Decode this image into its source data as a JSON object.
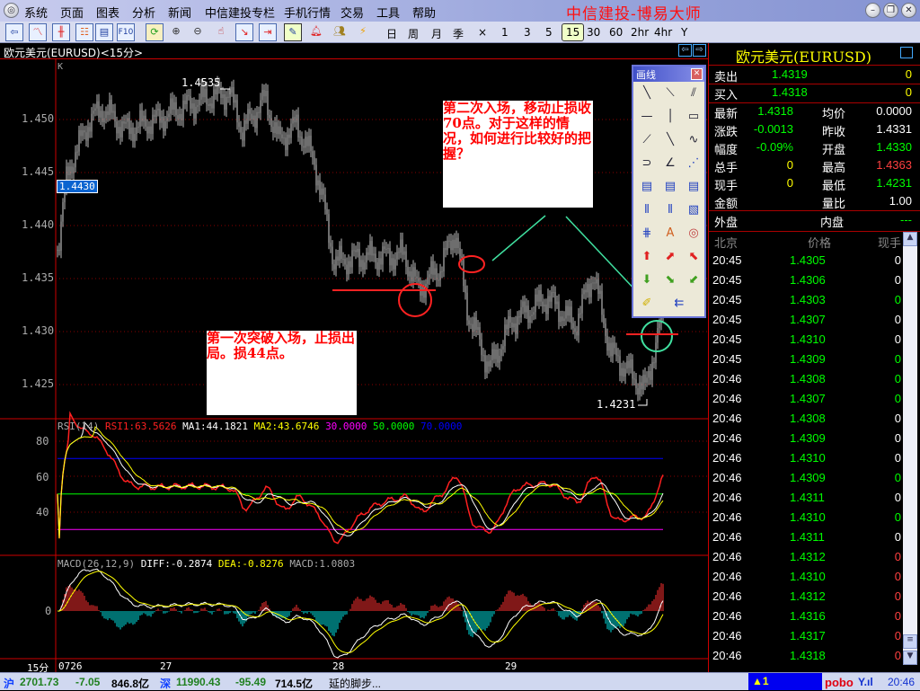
{
  "app": {
    "title": "中信建投-博易大师",
    "menu": [
      "系统",
      "页面",
      "图表",
      "分析",
      "新闻",
      "中信建投专栏",
      "手机行情",
      "交易",
      "工具",
      "帮助"
    ]
  },
  "toolbar": {
    "icons": [
      "back-icon",
      "line-chart-icon",
      "candle-chart-icon",
      "list-icon",
      "report-icon",
      "f10-icon",
      "refresh-icon",
      "zoom-in-icon",
      "zoom-out-icon",
      "select-icon",
      "export-icon",
      "import-icon",
      "draw-icon",
      "alarm-icon",
      "users-icon",
      "flash-icon"
    ],
    "f10_label": "F10",
    "periods": [
      "日",
      "周",
      "月",
      "季",
      "×",
      "1",
      "3",
      "5",
      "15",
      "30",
      "60",
      "2hr",
      "4hr",
      "Y"
    ],
    "selected_period": "15"
  },
  "chart": {
    "header": "欧元美元(EURUSD)<15分>",
    "k_label": "K",
    "y_ticks": [
      "1.450",
      "1.445",
      "1.440",
      "1.435",
      "1.430",
      "1.425"
    ],
    "high_label": "1.4535",
    "low_label": "1.4231",
    "cursor_price": "1.4430",
    "note1": "第二次入场，移动止损收70点。对于这样的情况，如何进行比较好的把握？",
    "note2": "第一次突破入场，止损出局。损44点。",
    "rsi": {
      "name": "RSI(14)",
      "rsi1": "RSI1:63.5626",
      "ma1": "MA1:44.1821",
      "ma2": "MA2:43.6746",
      "l30": "30.0000",
      "l50": "50.0000",
      "l70": "70.0000",
      "ticks": [
        "80",
        "60",
        "40"
      ]
    },
    "macd": {
      "name": "MACD(26,12,9)",
      "diff": "DIFF:-0.2874",
      "dea": "DEA:-0.8276",
      "macd": "MACD:1.0803",
      "zero": "0"
    },
    "x_axis": {
      "period": "15分",
      "labels": [
        "0726",
        "27",
        "28",
        "29"
      ]
    },
    "colors": {
      "rsi": "#ff2020",
      "ma1": "#ffffff",
      "ma2": "#ffff00",
      "l30": "#ff00ff",
      "l50": "#00ff00",
      "l70": "#0000ff",
      "up": "#ff3030",
      "down": "#00e0e0",
      "trend": "#40e0a0"
    }
  },
  "quote": {
    "title": "欧元美元(EURUSD)",
    "sell": {
      "label": "卖出",
      "price": "1.4319",
      "vol": "0"
    },
    "buy": {
      "label": "买入",
      "price": "1.4318",
      "vol": "0"
    },
    "rows": [
      {
        "l1": "最新",
        "v1": "1.4318",
        "c1": "#00ff00",
        "l2": "均价",
        "v2": "0.0000",
        "c2": "#ffffff"
      },
      {
        "l1": "涨跌",
        "v1": "-0.0013",
        "c1": "#00ff00",
        "l2": "昨收",
        "v2": "1.4331",
        "c2": "#ffffff"
      },
      {
        "l1": "幅度",
        "v1": "-0.09%",
        "c1": "#00ff00",
        "l2": "开盘",
        "v2": "1.4330",
        "c2": "#00ff00"
      },
      {
        "l1": "总手",
        "v1": "0",
        "c1": "#ffff00",
        "l2": "最高",
        "v2": "1.4363",
        "c2": "#ff4040"
      },
      {
        "l1": "现手",
        "v1": "0",
        "c1": "#ffff00",
        "l2": "最低",
        "v2": "1.4231",
        "c2": "#00ff00"
      },
      {
        "l1": "金额",
        "v1": "",
        "c1": "#ffffff",
        "l2": "量比",
        "v2": "1.00",
        "c2": "#ffffff"
      }
    ],
    "outer": {
      "label": "外盘",
      "value": ""
    },
    "inner": {
      "label": "内盘",
      "value": "---"
    },
    "tick_header": {
      "time": "北京",
      "price": "价格",
      "vol": "现手"
    },
    "ticks": [
      {
        "t": "20:45",
        "p": "1.4305",
        "v": "0",
        "c": "#ffffff"
      },
      {
        "t": "20:45",
        "p": "1.4306",
        "v": "0",
        "c": "#ffffff"
      },
      {
        "t": "20:45",
        "p": "1.4303",
        "v": "0",
        "c": "#00ff00"
      },
      {
        "t": "20:45",
        "p": "1.4307",
        "v": "0",
        "c": "#ffffff"
      },
      {
        "t": "20:45",
        "p": "1.4310",
        "v": "0",
        "c": "#ffffff"
      },
      {
        "t": "20:45",
        "p": "1.4309",
        "v": "0",
        "c": "#00ff00"
      },
      {
        "t": "20:46",
        "p": "1.4308",
        "v": "0",
        "c": "#00ff00"
      },
      {
        "t": "20:46",
        "p": "1.4307",
        "v": "0",
        "c": "#00ff00"
      },
      {
        "t": "20:46",
        "p": "1.4308",
        "v": "0",
        "c": "#ffffff"
      },
      {
        "t": "20:46",
        "p": "1.4309",
        "v": "0",
        "c": "#ffffff"
      },
      {
        "t": "20:46",
        "p": "1.4310",
        "v": "0",
        "c": "#ffffff"
      },
      {
        "t": "20:46",
        "p": "1.4309",
        "v": "0",
        "c": "#00ff00"
      },
      {
        "t": "20:46",
        "p": "1.4311",
        "v": "0",
        "c": "#ffffff"
      },
      {
        "t": "20:46",
        "p": "1.4310",
        "v": "0",
        "c": "#00ff00"
      },
      {
        "t": "20:46",
        "p": "1.4311",
        "v": "0",
        "c": "#ffffff"
      },
      {
        "t": "20:46",
        "p": "1.4312",
        "v": "0",
        "c": "#ff4040"
      },
      {
        "t": "20:46",
        "p": "1.4310",
        "v": "0",
        "c": "#ff4040"
      },
      {
        "t": "20:46",
        "p": "1.4312",
        "v": "0",
        "c": "#ff4040"
      },
      {
        "t": "20:46",
        "p": "1.4316",
        "v": "0",
        "c": "#ff4040"
      },
      {
        "t": "20:46",
        "p": "1.4317",
        "v": "0",
        "c": "#ff4040"
      },
      {
        "t": "20:46",
        "p": "1.4318",
        "v": "0",
        "c": "#ff4040"
      }
    ]
  },
  "toolbox": {
    "title": "画线",
    "tools": [
      "line-icon",
      "segment-icon",
      "parallel-icon",
      "horizontal-line-icon",
      "vertical-line-icon",
      "rectangle-icon",
      "ray-icon",
      "segment2-icon",
      "wave-icon",
      "arc-icon",
      "angle-icon",
      "fan-icon",
      "gann-icon",
      "percent-icon",
      "percent2-icon",
      "cycle-icon",
      "fibonacci-icon",
      "channel-icon",
      "speed-icon",
      "text-icon",
      "stamp-icon",
      "up-arrow-icon",
      "up-right-arrow-icon",
      "up-left-arrow-icon",
      "down-arrow-icon",
      "down-right-arrow-icon",
      "down-left-arrow-icon",
      "eraser-icon",
      "delete-all-icon"
    ],
    "text_glyph": "A"
  },
  "status": {
    "sh_label": "沪",
    "sh_index": "2701.73",
    "sh_change": "-7.05",
    "sh_amount": "846.8亿",
    "sz_label": "深",
    "sz_index": "11990.43",
    "sz_change": "-95.49",
    "sz_amount": "714.5亿",
    "ticker": "延的脚步...",
    "alerts": "▲1",
    "brand": "pobo",
    "time": "20:46"
  }
}
